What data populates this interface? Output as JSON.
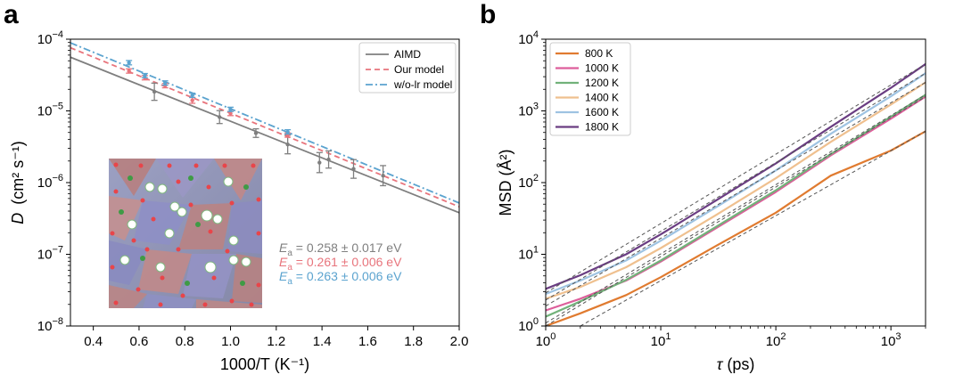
{
  "chart_data": [
    {
      "panel_label": "a",
      "type": "scatter",
      "xlabel": "1000/T (K⁻¹)",
      "ylabel_italic": "D",
      "ylabel": "(cm² s⁻¹)",
      "xlim": [
        0.3,
        2.0
      ],
      "ylim": [
        1e-08,
        0.0001
      ],
      "yscale": "log",
      "x_ticks": [
        "0.4",
        "0.6",
        "0.8",
        "1.0",
        "1.2",
        "1.4",
        "1.6",
        "1.8",
        "2.0"
      ],
      "y_ticks": [
        {
          "base": "10",
          "exp": "−4"
        },
        {
          "base": "10",
          "exp": "−5"
        },
        {
          "base": "10",
          "exp": "−6"
        },
        {
          "base": "10",
          "exp": "−7"
        },
        {
          "base": "10",
          "exp": "−8"
        }
      ],
      "legend_position": "top-right",
      "series": [
        {
          "name": "AIMD",
          "color": "#7f7f7f",
          "line_style": "solid",
          "fit": {
            "x": [
              0.3,
              2.0
            ],
            "y": [
              5.6e-05,
              3.8e-07
            ]
          },
          "points": [
            {
              "x": 0.667,
              "y": 1.85e-05,
              "err": 0.12
            },
            {
              "x": 0.952,
              "y": 8.2e-06,
              "err": 0.09
            },
            {
              "x": 1.111,
              "y": 4.9e-06,
              "err": 0.06
            },
            {
              "x": 1.25,
              "y": 3.4e-06,
              "err": 0.13
            },
            {
              "x": 1.389,
              "y": 1.9e-06,
              "err": 0.14
            },
            {
              "x": 1.429,
              "y": 2.1e-06,
              "err": 0.12
            },
            {
              "x": 1.538,
              "y": 1.55e-06,
              "err": 0.13
            },
            {
              "x": 1.667,
              "y": 1.25e-06,
              "err": 0.14
            }
          ]
        },
        {
          "name": "Our model",
          "color": "#e8747c",
          "line_style": "dashed",
          "fit": {
            "x": [
              0.3,
              2.0
            ],
            "y": [
              7.6e-05,
              4.6e-07
            ]
          },
          "points": [
            {
              "x": 0.556,
              "y": 3.6e-05,
              "err": 0.03
            },
            {
              "x": 0.625,
              "y": 2.9e-05,
              "err": 0.03
            },
            {
              "x": 0.714,
              "y": 2.25e-05,
              "err": 0.03
            },
            {
              "x": 0.833,
              "y": 1.4e-05,
              "err": 0.04
            },
            {
              "x": 1.0,
              "y": 9.2e-06,
              "err": 0.03
            },
            {
              "x": 1.25,
              "y": 4.6e-06,
              "err": 0.03
            }
          ]
        },
        {
          "name": "w/o-lr model",
          "color": "#5ba3cf",
          "line_style": "dashdot",
          "fit": {
            "x": [
              0.3,
              2.0
            ],
            "y": [
              8.9e-05,
              5.2e-07
            ]
          },
          "points": [
            {
              "x": 0.556,
              "y": 4.7e-05,
              "err": 0.03
            },
            {
              "x": 0.625,
              "y": 3.1e-05,
              "err": 0.03
            },
            {
              "x": 0.714,
              "y": 2.45e-05,
              "err": 0.03
            },
            {
              "x": 0.833,
              "y": 1.65e-05,
              "err": 0.03
            },
            {
              "x": 1.0,
              "y": 1.05e-05,
              "err": 0.03
            },
            {
              "x": 1.25,
              "y": 5.1e-06,
              "err": 0.03
            }
          ]
        }
      ],
      "annotations": [
        {
          "symbol": "E",
          "sub": "a",
          "text": " = 0.258 ± 0.017 eV",
          "color": "#7f7f7f"
        },
        {
          "symbol": "E",
          "sub": "a",
          "text": " = 0.261 ± 0.006 eV",
          "color": "#e8747c"
        },
        {
          "symbol": "E",
          "sub": "a",
          "text": " = 0.263 ± 0.006 eV",
          "color": "#5ba3cf"
        }
      ]
    },
    {
      "panel_label": "b",
      "type": "line",
      "xlabel_symbol": "τ",
      "xlabel": " (ps)",
      "ylabel": "MSD (Å²)",
      "xlim": [
        1,
        2000
      ],
      "ylim": [
        1,
        10000
      ],
      "xscale": "log",
      "yscale": "log",
      "x_ticks": [
        {
          "base": "10",
          "exp": "0"
        },
        {
          "base": "10",
          "exp": "1"
        },
        {
          "base": "10",
          "exp": "2"
        },
        {
          "base": "10",
          "exp": "3"
        }
      ],
      "y_ticks": [
        {
          "base": "10",
          "exp": "0"
        },
        {
          "base": "10",
          "exp": "1"
        },
        {
          "base": "10",
          "exp": "2"
        },
        {
          "base": "10",
          "exp": "3"
        },
        {
          "base": "10",
          "exp": "4"
        }
      ],
      "legend_position": "top-left",
      "series": [
        {
          "name": "800 K",
          "color": "#e07b30",
          "points": [
            [
              1,
              1.0
            ],
            [
              2,
              1.5
            ],
            [
              5,
              2.7
            ],
            [
              10,
              4.8
            ],
            [
              30,
              13
            ],
            [
              100,
              38
            ],
            [
              300,
              125
            ],
            [
              1000,
              280
            ],
            [
              2000,
              520
            ]
          ]
        },
        {
          "name": "1000 K",
          "color": "#dd5e9b",
          "points": [
            [
              1,
              1.65
            ],
            [
              2,
              2.4
            ],
            [
              5,
              4.3
            ],
            [
              10,
              7.9
            ],
            [
              30,
              23
            ],
            [
              100,
              74
            ],
            [
              300,
              240
            ],
            [
              1000,
              780
            ],
            [
              2000,
              1580
            ]
          ]
        },
        {
          "name": "1200 K",
          "color": "#72b27a",
          "points": [
            [
              1,
              1.35
            ],
            [
              2,
              2.2
            ],
            [
              5,
              4.4
            ],
            [
              10,
              8.2
            ],
            [
              30,
              24
            ],
            [
              100,
              78
            ],
            [
              300,
              250
            ],
            [
              1000,
              830
            ],
            [
              2000,
              1680
            ]
          ]
        },
        {
          "name": "1400 K",
          "color": "#efc08f",
          "points": [
            [
              1,
              2.4
            ],
            [
              2,
              3.5
            ],
            [
              5,
              6.6
            ],
            [
              10,
              12.2
            ],
            [
              30,
              35
            ],
            [
              100,
              115
            ],
            [
              300,
              370
            ],
            [
              1000,
              1230
            ],
            [
              2000,
              2500
            ]
          ]
        },
        {
          "name": "1600 K",
          "color": "#9ec3e2",
          "points": [
            [
              1,
              2.8
            ],
            [
              2,
              4.3
            ],
            [
              5,
              8.2
            ],
            [
              10,
              15.5
            ],
            [
              30,
              45
            ],
            [
              100,
              148
            ],
            [
              300,
              480
            ],
            [
              1000,
              1600
            ],
            [
              2000,
              3350
            ]
          ]
        },
        {
          "name": "1800 K",
          "color": "#6a3d82",
          "points": [
            [
              1,
              3.3
            ],
            [
              2,
              5.1
            ],
            [
              5,
              10
            ],
            [
              10,
              19
            ],
            [
              30,
              56
            ],
            [
              100,
              185
            ],
            [
              300,
              600
            ],
            [
              1000,
              2100
            ],
            [
              2000,
              4500
            ]
          ]
        }
      ],
      "reference_lines": {
        "color": "#555555",
        "style": "dashed",
        "lines": [
          {
            "x": [
              2.0,
              2000
            ],
            "y": [
              1.0,
              520
            ]
          },
          {
            "x": [
              1,
              2000
            ],
            "y": [
              1.0,
              1580
            ]
          },
          {
            "x": [
              1,
              2000
            ],
            "y": [
              1.1,
              1680
            ]
          },
          {
            "x": [
              1,
              2000
            ],
            "y": [
              1.9,
              2500
            ]
          },
          {
            "x": [
              1,
              2000
            ],
            "y": [
              2.3,
              3350
            ]
          },
          {
            "x": [
              1,
              2000
            ],
            "y": [
              2.9,
              4500
            ]
          }
        ]
      }
    }
  ]
}
